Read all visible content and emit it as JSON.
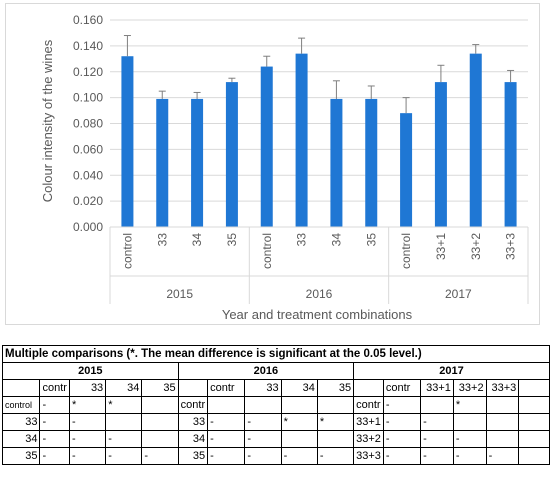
{
  "chart_data": {
    "type": "bar",
    "ylabel": "Colour intensity of the wines",
    "xlabel": "Year and treatment combinations",
    "ylim": [
      0,
      0.16
    ],
    "yticks": [
      "0.000",
      "0.020",
      "0.040",
      "0.060",
      "0.080",
      "0.100",
      "0.120",
      "0.140",
      "0.160"
    ],
    "groups": [
      {
        "name": "2015",
        "categories": [
          "control",
          "33",
          "34",
          "35"
        ],
        "values": [
          0.132,
          0.099,
          0.099,
          0.112
        ],
        "errors": [
          0.016,
          0.006,
          0.005,
          0.003
        ]
      },
      {
        "name": "2016",
        "categories": [
          "control",
          "33",
          "34",
          "35"
        ],
        "values": [
          0.124,
          0.134,
          0.099,
          0.099
        ],
        "errors": [
          0.008,
          0.012,
          0.014,
          0.01
        ]
      },
      {
        "name": "2017",
        "categories": [
          "control",
          "33+1",
          "33+2",
          "33+3"
        ],
        "values": [
          0.088,
          0.112,
          0.134,
          0.112
        ],
        "errors": [
          0.012,
          0.013,
          0.007,
          0.009
        ]
      }
    ],
    "bar_color": "#1f77d4",
    "grid": true
  },
  "table": {
    "title": "Multiple comparisons (*. The mean difference is significant at the 0.05 level.)",
    "blocks": [
      {
        "year": "2015",
        "headers": [
          "contr",
          "33",
          "34",
          "35"
        ],
        "rows": [
          {
            "label": "control",
            "cells": [
              "-",
              "*",
              "*",
              ""
            ]
          },
          {
            "label": "33",
            "cells": [
              "-",
              "-",
              "",
              ""
            ]
          },
          {
            "label": "34",
            "cells": [
              "-",
              "-",
              "-",
              ""
            ]
          },
          {
            "label": "35",
            "cells": [
              "-",
              "-",
              "-",
              "-"
            ]
          }
        ]
      },
      {
        "year": "2016",
        "headers": [
          "contr",
          "33",
          "34",
          "35"
        ],
        "rows": [
          {
            "label": "contr",
            "cells": [
              "",
              "",
              "",
              ""
            ]
          },
          {
            "label": "33",
            "cells": [
              "-",
              "-",
              "*",
              "*"
            ]
          },
          {
            "label": "34",
            "cells": [
              "-",
              "-",
              "",
              ""
            ]
          },
          {
            "label": "35",
            "cells": [
              "-",
              "-",
              "-",
              "-"
            ]
          }
        ]
      },
      {
        "year": "2017",
        "headers": [
          "contr",
          "33+1",
          "33+2",
          "33+3"
        ],
        "rows": [
          {
            "label": "contr",
            "cells": [
              "-",
              "",
              "*",
              ""
            ]
          },
          {
            "label": "33+1",
            "cells": [
              "-",
              "-",
              "",
              ""
            ]
          },
          {
            "label": "33+2",
            "cells": [
              "-",
              "-",
              "-",
              ""
            ]
          },
          {
            "label": "33+3",
            "cells": [
              "-",
              "-",
              "-",
              "-"
            ]
          }
        ]
      }
    ]
  }
}
